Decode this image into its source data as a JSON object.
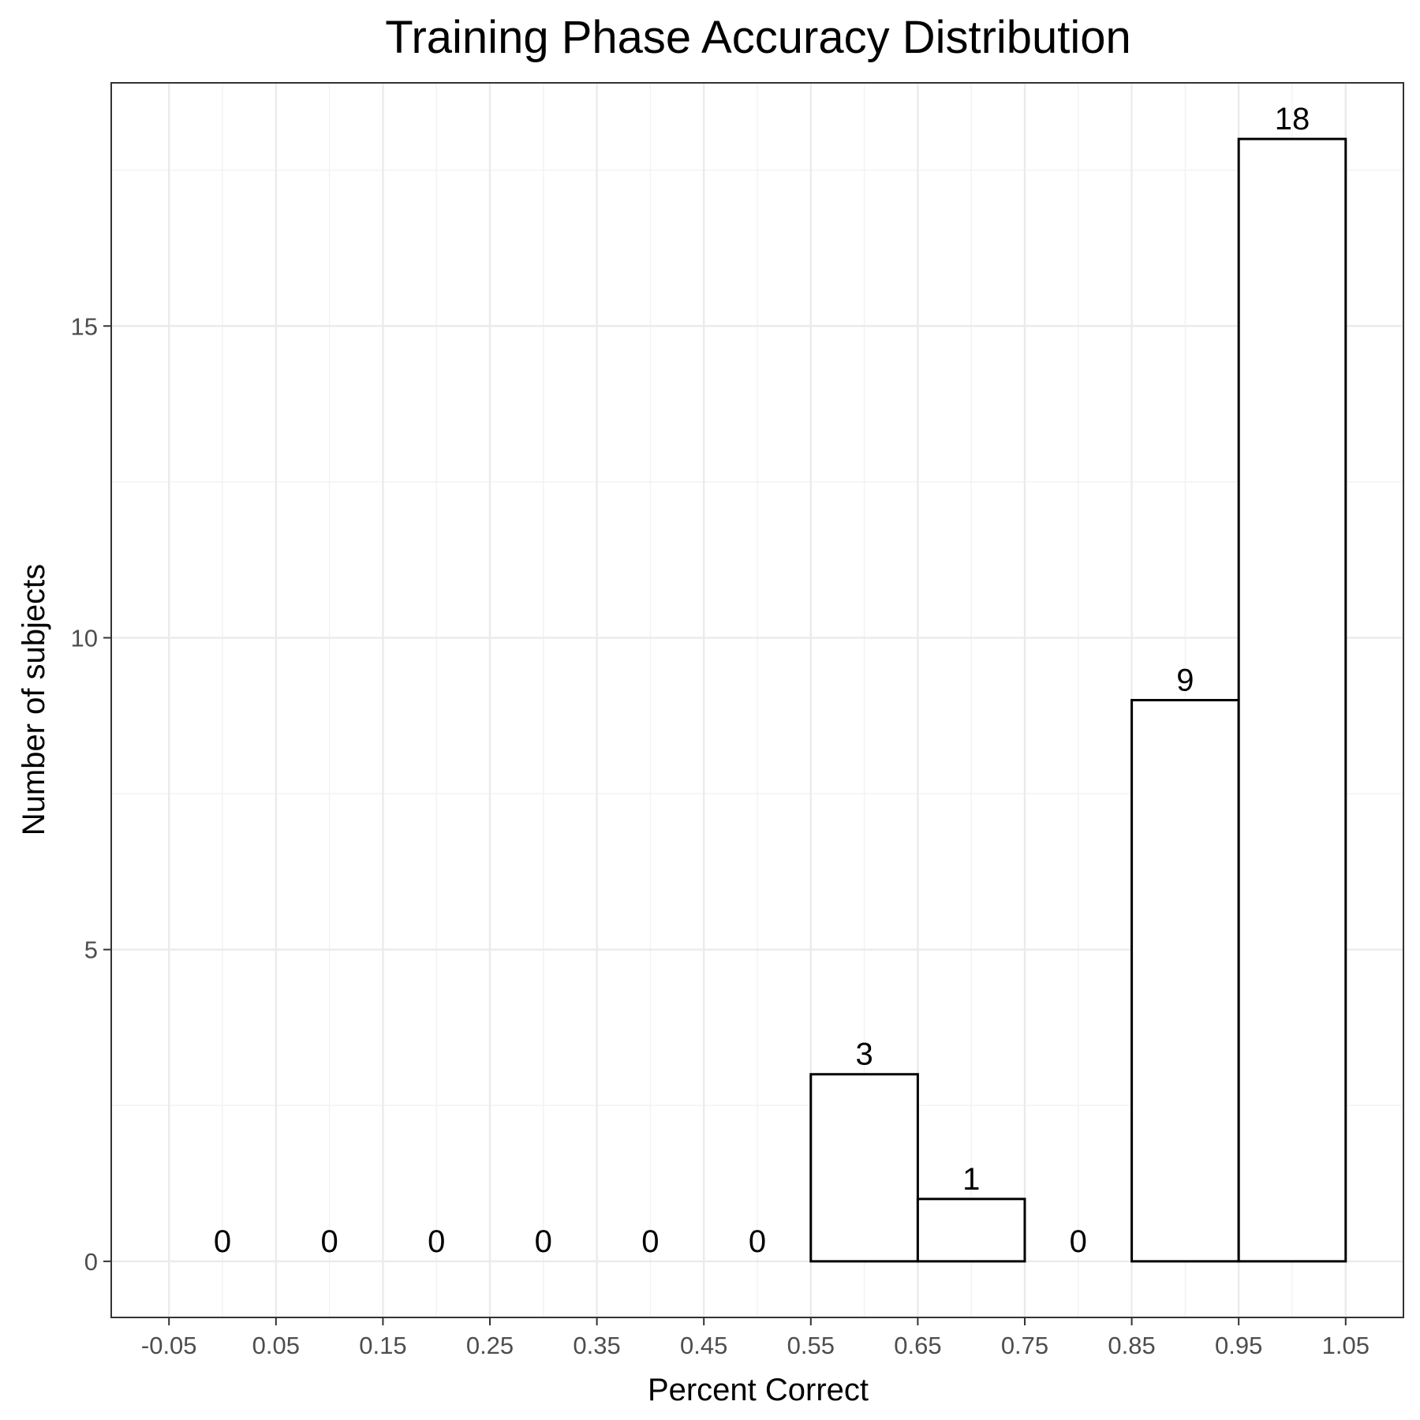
{
  "chart_data": {
    "type": "bar",
    "title": "Training Phase Accuracy Distribution",
    "xlabel": "Percent Correct",
    "ylabel": "Number of subjects",
    "bin_width": 0.1,
    "bin_centers": [
      0.0,
      0.1,
      0.2,
      0.3,
      0.4,
      0.5,
      0.6,
      0.7,
      0.8,
      0.9,
      1.0
    ],
    "values": [
      0,
      0,
      0,
      0,
      0,
      0,
      3,
      1,
      0,
      9,
      18
    ],
    "x_ticks": [
      -0.05,
      0.05,
      0.15,
      0.25,
      0.35,
      0.45,
      0.55,
      0.65,
      0.75,
      0.85,
      0.95,
      1.05
    ],
    "x_tick_labels": [
      "-0.05",
      "0.05",
      "0.15",
      "0.25",
      "0.35",
      "0.45",
      "0.55",
      "0.65",
      "0.75",
      "0.85",
      "0.95",
      "1.05"
    ],
    "y_ticks": [
      0,
      5,
      10,
      15
    ],
    "y_tick_labels": [
      "0",
      "5",
      "10",
      "15"
    ],
    "xlim": [
      -0.104,
      1.104
    ],
    "ylim": [
      -0.9,
      18.9
    ],
    "grid": true,
    "bar_fill": "#ffffff",
    "bar_stroke": "#000000"
  }
}
